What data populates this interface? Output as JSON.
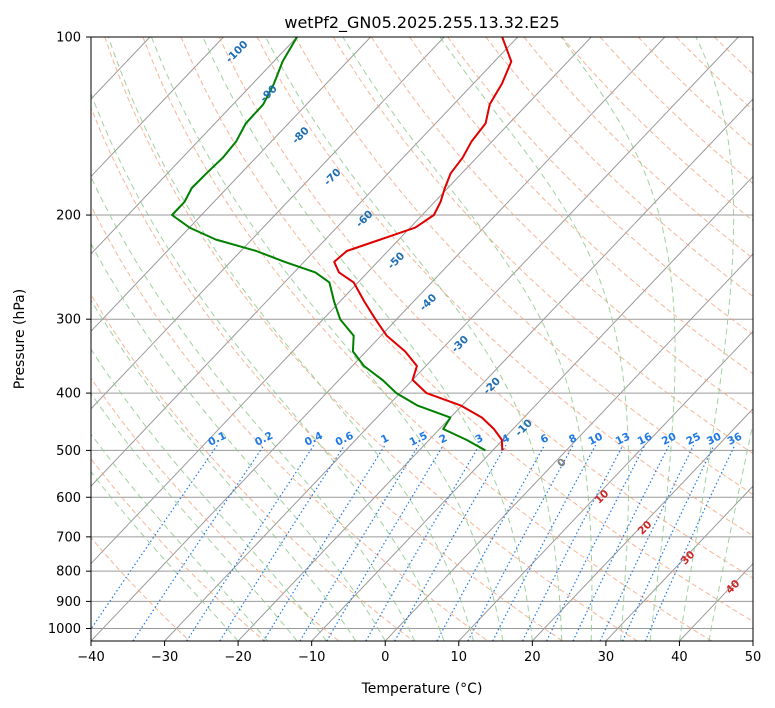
{
  "chart_data": {
    "type": "line",
    "subtype": "skew-t log-p diagram",
    "title": "wetPf2_GN05.2025.255.13.32.E25",
    "xlabel": "Temperature (°C)",
    "ylabel": "Pressure (hPa)",
    "xlim": [
      -40,
      50
    ],
    "ylim": [
      1050,
      100
    ],
    "y_scale": "log",
    "grid": true,
    "x_ticks": [
      -40,
      -30,
      -20,
      -10,
      0,
      10,
      20,
      30,
      40,
      50
    ],
    "x_tick_labels": [
      "−40",
      "−30",
      "−20",
      "−10",
      "0",
      "10",
      "20",
      "30",
      "40",
      "50"
    ],
    "y_ticks": [
      100,
      200,
      300,
      400,
      500,
      600,
      700,
      800,
      900,
      1000
    ],
    "y_tick_labels": [
      "100",
      "200",
      "300",
      "400",
      "500",
      "600",
      "700",
      "800",
      "900",
      "1000"
    ],
    "colors": {
      "temperature": "#e00000",
      "dewpoint": "#008000",
      "isotherm": "#9a9a9a",
      "dry_adiabat": "#f4a27c",
      "moist_adiabat": "#8fc98f",
      "mixing_ratio": "#1e78e6",
      "isotherm_label": "#1f6fb4",
      "moist_label": "#d02828",
      "zero_label": "#7f7f7f"
    },
    "series": [
      {
        "key": "temperature",
        "p": [
          100,
          110,
          120,
          130,
          140,
          150,
          160,
          170,
          180,
          190,
          200,
          210,
          220,
          230,
          240,
          250,
          260,
          280,
          300,
          320,
          340,
          360,
          380,
          400,
          420,
          440,
          460,
          480,
          500
        ],
        "t": [
          -62.1,
          -57.7,
          -56.1,
          -55.1,
          -53.2,
          -52.8,
          -51.9,
          -51.5,
          -50.4,
          -49.2,
          -48.4,
          -49.3,
          -52.5,
          -55.6,
          -55.9,
          -53.9,
          -50.6,
          -46.7,
          -42.9,
          -39.2,
          -34.7,
          -31.2,
          -30.0,
          -26.4,
          -20.1,
          -15.7,
          -12.6,
          -10.1,
          -8.7
        ]
      },
      {
        "key": "dewpoint",
        "p": [
          100,
          110,
          120,
          130,
          140,
          150,
          160,
          170,
          180,
          190,
          200,
          210,
          220,
          230,
          240,
          250,
          260,
          280,
          300,
          320,
          340,
          360,
          380,
          400,
          420,
          440,
          460,
          480,
          500
        ],
        "t": [
          -90.0,
          -88.8,
          -87.1,
          -85.9,
          -85.8,
          -84.8,
          -84.5,
          -84.7,
          -84.8,
          -84.0,
          -84.0,
          -80.0,
          -74.9,
          -67.9,
          -62.6,
          -57.1,
          -53.9,
          -50.8,
          -47.7,
          -43.7,
          -41.8,
          -38.4,
          -34.1,
          -30.5,
          -26.0,
          -20.0,
          -19.5,
          -14.9,
          -11.0
        ]
      }
    ],
    "isotherm_labels": [
      "-100",
      "-90",
      "-80",
      "-70",
      "-60",
      "-50",
      "-40",
      "-30",
      "-20",
      "-10"
    ],
    "mixing_ratio_labels": [
      "0.1",
      "0.2",
      "0.4",
      "0.6",
      "1",
      "1.5",
      "2",
      "3",
      "4",
      "6",
      "8",
      "10",
      "13",
      "16",
      "20",
      "25",
      "30",
      "36"
    ],
    "moist_adiabat_labels": [
      "0",
      "10",
      "20",
      "30",
      "40"
    ]
  }
}
